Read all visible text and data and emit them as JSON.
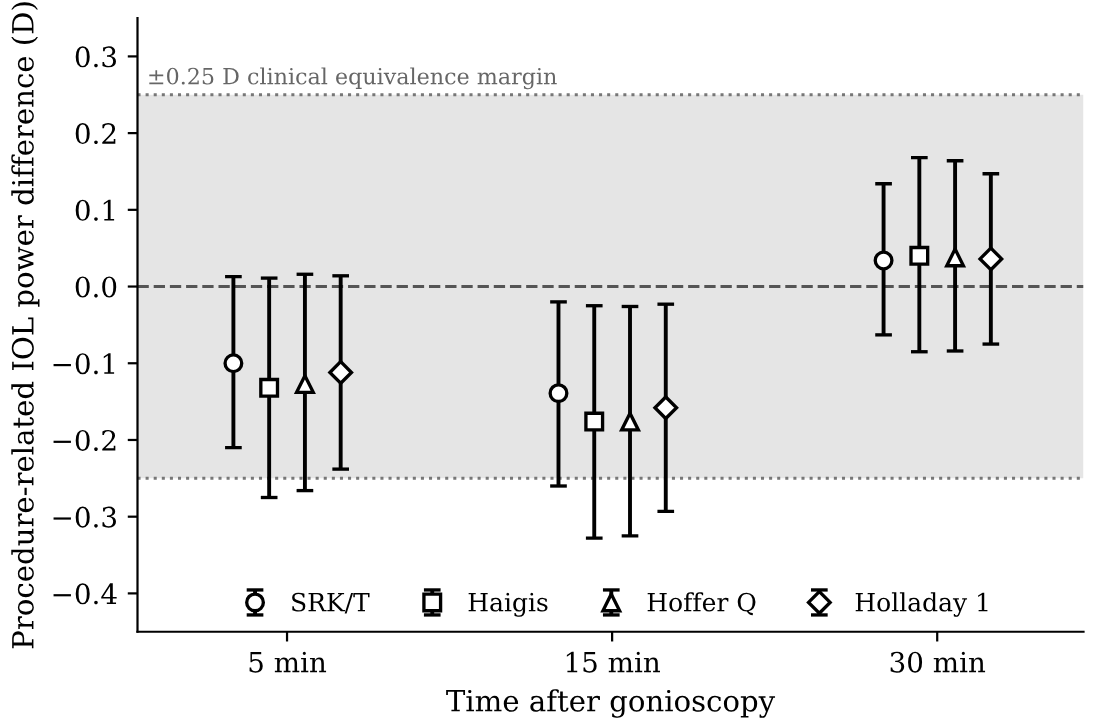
{
  "chart_data": {
    "type": "scatter",
    "xlabel": "Time after gonioscopy",
    "ylabel": "Procedure-related IOL power difference (D)",
    "categories": [
      "5 min",
      "15 min",
      "30 min"
    ],
    "series": [
      {
        "name": "SRK/T",
        "color": "#000000",
        "marker": "circle",
        "values": [
          -0.1,
          -0.139,
          0.034
        ],
        "errors": [
          [
            -0.21,
            0.013
          ],
          [
            -0.26,
            -0.02
          ],
          [
            -0.063,
            0.134
          ]
        ]
      },
      {
        "name": "Haigis",
        "color": "#000000",
        "marker": "square",
        "values": [
          -0.132,
          -0.176,
          0.04
        ],
        "errors": [
          [
            -0.275,
            0.011
          ],
          [
            -0.328,
            -0.025
          ],
          [
            -0.085,
            0.168
          ]
        ]
      },
      {
        "name": "Hoffer Q",
        "color": "#000000",
        "marker": "triangle",
        "values": [
          -0.127,
          -0.176,
          0.038
        ],
        "errors": [
          [
            -0.266,
            0.016
          ],
          [
            -0.325,
            -0.026
          ],
          [
            -0.084,
            0.164
          ]
        ]
      },
      {
        "name": "Holladay 1",
        "color": "#000000",
        "marker": "diamond",
        "values": [
          -0.112,
          -0.158,
          0.036
        ],
        "errors": [
          [
            -0.238,
            0.014
          ],
          [
            -0.293,
            -0.023
          ],
          [
            -0.075,
            0.147
          ]
        ]
      }
    ],
    "ylim": [
      -0.45,
      0.35
    ],
    "yticks": [
      {
        "value": -0.4,
        "label": "−0.4"
      },
      {
        "value": -0.3,
        "label": "−0.3"
      },
      {
        "value": -0.2,
        "label": "−0.2"
      },
      {
        "value": -0.1,
        "label": "−0.1"
      },
      {
        "value": 0.0,
        "label": "0.0"
      },
      {
        "value": 0.1,
        "label": "0.1"
      },
      {
        "value": 0.2,
        "label": "0.2"
      },
      {
        "value": 0.3,
        "label": "0.3"
      }
    ],
    "ref_lines": [
      {
        "axis": "y",
        "value": 0,
        "label": null,
        "color": "#555555",
        "line_style": "dashed"
      },
      {
        "axis": "y",
        "value": 0.25,
        "label": null,
        "color": "#777777",
        "line_style": "dotted"
      },
      {
        "axis": "y",
        "value": -0.25,
        "label": null,
        "color": "#777777",
        "line_style": "dotted"
      }
    ],
    "bands": [
      {
        "axis": "y",
        "from": -0.25,
        "to": 0.25,
        "label": "±0.25 D clinical equivalence margin",
        "color": "#e5e5e5"
      }
    ],
    "legend": "bottom",
    "grid": false
  }
}
